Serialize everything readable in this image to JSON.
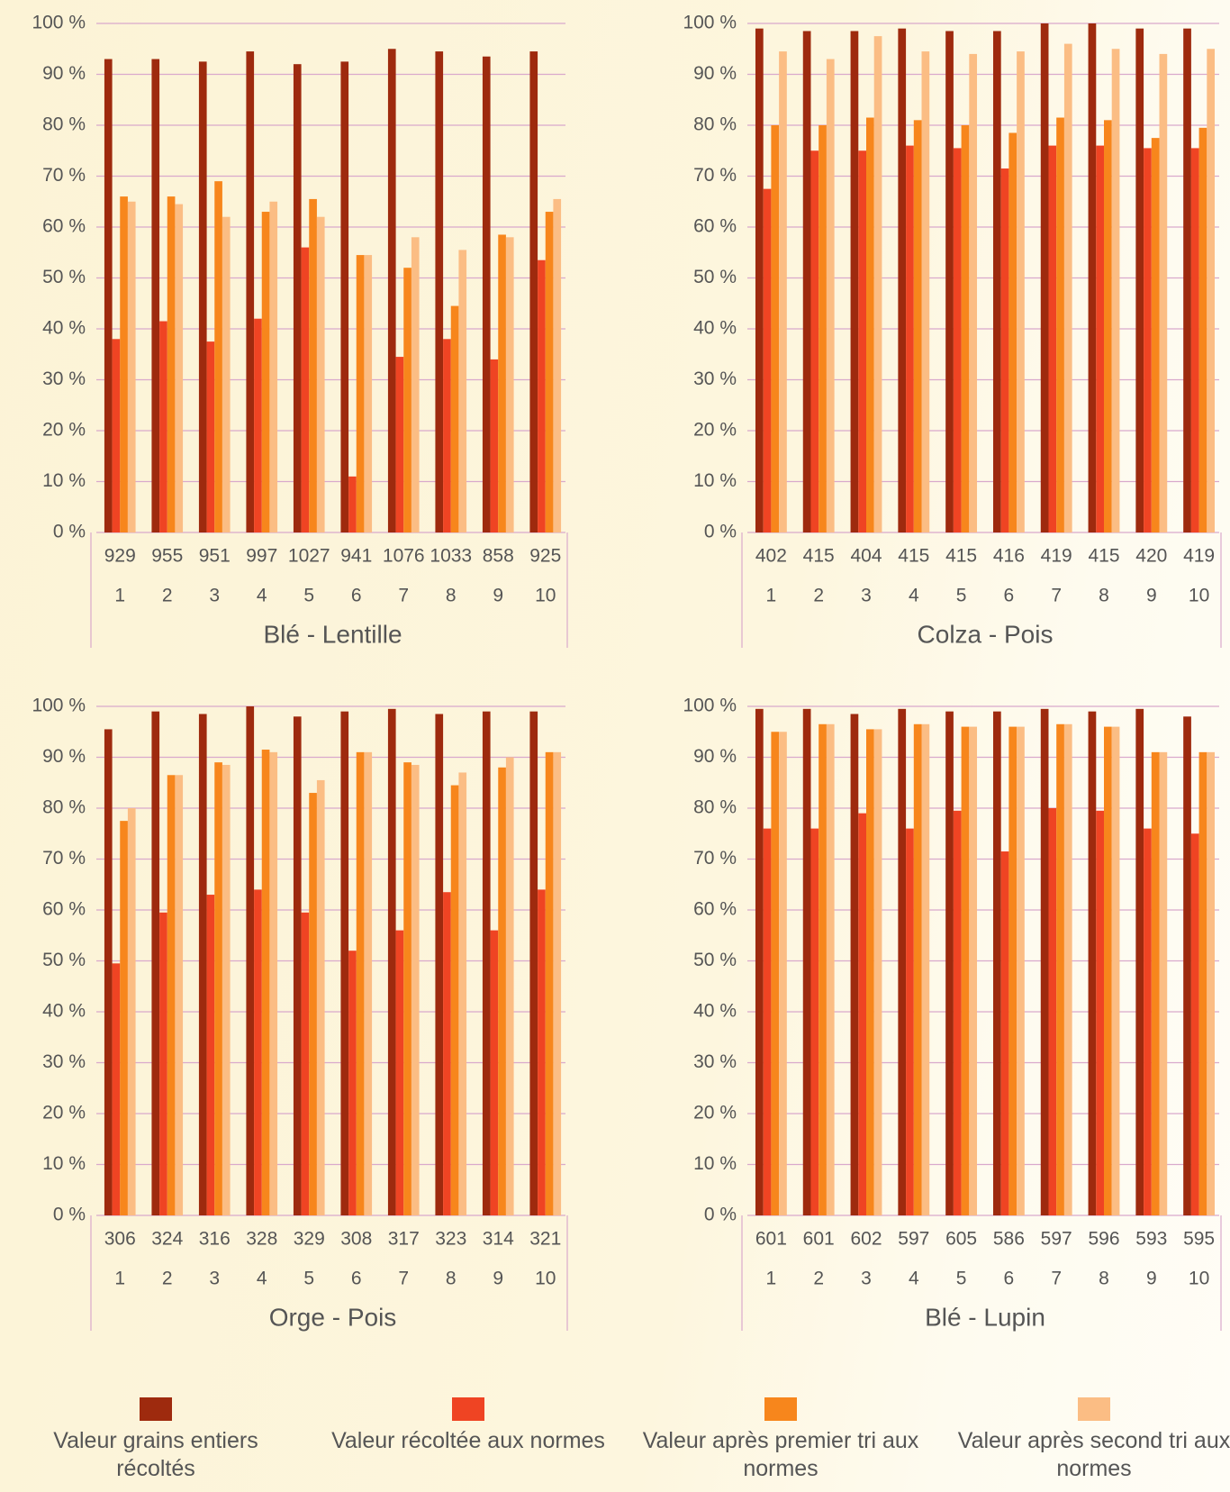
{
  "chart_data": [
    {
      "type": "bar",
      "x_label": "Blé - Lentille",
      "categories": [
        "1",
        "2",
        "3",
        "4",
        "5",
        "6",
        "7",
        "8",
        "9",
        "10"
      ],
      "counts": [
        "929",
        "955",
        "951",
        "997",
        "1027",
        "941",
        "1076",
        "1033",
        "858",
        "925"
      ],
      "ylim": [
        0,
        100
      ],
      "yticks": [
        {
          "value": 0,
          "label": "0 %"
        },
        {
          "value": 10,
          "label": "10 %"
        },
        {
          "value": 20,
          "label": "20 %"
        },
        {
          "value": 30,
          "label": "30 %"
        },
        {
          "value": 40,
          "label": "40 %"
        },
        {
          "value": 50,
          "label": "50 %"
        },
        {
          "value": 60,
          "label": "60 %"
        },
        {
          "value": 70,
          "label": "70 %"
        },
        {
          "value": 80,
          "label": "80 %"
        },
        {
          "value": 90,
          "label": "90 %"
        },
        {
          "value": 100,
          "label": "100 %"
        }
      ],
      "grid": true,
      "series": [
        {
          "name": "Valeur grains entiers récoltés",
          "color": "#9e2a0e",
          "values": [
            93,
            93,
            92.5,
            94.5,
            92,
            92.5,
            95,
            94.5,
            93.5,
            94.5
          ]
        },
        {
          "name": "Valeur récoltée aux normes",
          "color": "#ef4423",
          "values": [
            38,
            41.5,
            37.5,
            42,
            56,
            11,
            34.5,
            38,
            34,
            53.5
          ]
        },
        {
          "name": "Valeur après premier tri aux normes",
          "color": "#f7861c",
          "values": [
            66,
            66,
            69,
            63,
            65.5,
            54.5,
            52,
            44.5,
            58.5,
            63
          ]
        },
        {
          "name": "Valeur après second tri aux normes",
          "color": "#fbbd84",
          "values": [
            65,
            64.5,
            62,
            65,
            62,
            54.5,
            58,
            55.5,
            58,
            65.5
          ]
        }
      ]
    },
    {
      "type": "bar",
      "x_label": "Colza - Pois",
      "categories": [
        "1",
        "2",
        "3",
        "4",
        "5",
        "6",
        "7",
        "8",
        "9",
        "10"
      ],
      "counts": [
        "402",
        "415",
        "404",
        "415",
        "415",
        "416",
        "419",
        "415",
        "420",
        "419"
      ],
      "ylim": [
        0,
        100
      ],
      "yticks": [
        {
          "value": 0,
          "label": "0 %"
        },
        {
          "value": 10,
          "label": "10 %"
        },
        {
          "value": 20,
          "label": "20 %"
        },
        {
          "value": 30,
          "label": "30 %"
        },
        {
          "value": 40,
          "label": "40 %"
        },
        {
          "value": 50,
          "label": "50 %"
        },
        {
          "value": 60,
          "label": "60 %"
        },
        {
          "value": 70,
          "label": "70 %"
        },
        {
          "value": 80,
          "label": "80 %"
        },
        {
          "value": 90,
          "label": "90 %"
        },
        {
          "value": 100,
          "label": "100 %"
        }
      ],
      "grid": true,
      "series": [
        {
          "name": "Valeur grains entiers récoltés",
          "color": "#9e2a0e",
          "values": [
            99,
            98.5,
            98.5,
            99,
            98.5,
            98.5,
            100,
            100,
            99,
            99
          ]
        },
        {
          "name": "Valeur récoltée aux normes",
          "color": "#ef4423",
          "values": [
            67.5,
            75,
            75,
            76,
            75.5,
            71.5,
            76,
            76,
            75.5,
            75.5
          ]
        },
        {
          "name": "Valeur après premier tri aux normes",
          "color": "#f7861c",
          "values": [
            80,
            80,
            81.5,
            81,
            80,
            78.5,
            81.5,
            81,
            77.5,
            79.5
          ]
        },
        {
          "name": "Valeur après second tri aux normes",
          "color": "#fbbd84",
          "values": [
            94.5,
            93,
            97.5,
            94.5,
            94,
            94.5,
            96,
            95,
            94,
            95
          ]
        }
      ]
    },
    {
      "type": "bar",
      "x_label": "Orge - Pois",
      "categories": [
        "1",
        "2",
        "3",
        "4",
        "5",
        "6",
        "7",
        "8",
        "9",
        "10"
      ],
      "counts": [
        "306",
        "324",
        "316",
        "328",
        "329",
        "308",
        "317",
        "323",
        "314",
        "321"
      ],
      "ylim": [
        0,
        100
      ],
      "yticks": [
        {
          "value": 0,
          "label": "0 %"
        },
        {
          "value": 10,
          "label": "10 %"
        },
        {
          "value": 20,
          "label": "20 %"
        },
        {
          "value": 30,
          "label": "30 %"
        },
        {
          "value": 40,
          "label": "40 %"
        },
        {
          "value": 50,
          "label": "50 %"
        },
        {
          "value": 60,
          "label": "60 %"
        },
        {
          "value": 70,
          "label": "70 %"
        },
        {
          "value": 80,
          "label": "80 %"
        },
        {
          "value": 90,
          "label": "90 %"
        },
        {
          "value": 100,
          "label": "100 %"
        }
      ],
      "grid": true,
      "series": [
        {
          "name": "Valeur grains entiers récoltés",
          "color": "#9e2a0e",
          "values": [
            95.5,
            99,
            98.5,
            100,
            98,
            99,
            99.5,
            98.5,
            99,
            99
          ]
        },
        {
          "name": "Valeur récoltée aux normes",
          "color": "#ef4423",
          "values": [
            49.5,
            59.5,
            63,
            64,
            59.5,
            52,
            56,
            63.5,
            56,
            64
          ]
        },
        {
          "name": "Valeur après premier tri aux normes",
          "color": "#f7861c",
          "values": [
            77.5,
            86.5,
            89,
            91.5,
            83,
            91,
            89,
            84.5,
            88,
            91
          ]
        },
        {
          "name": "Valeur après second tri aux normes",
          "color": "#fbbd84",
          "values": [
            80,
            86.5,
            88.5,
            91,
            85.5,
            91,
            88.5,
            87,
            90,
            91
          ]
        }
      ]
    },
    {
      "type": "bar",
      "x_label": "Blé - Lupin",
      "categories": [
        "1",
        "2",
        "3",
        "4",
        "5",
        "6",
        "7",
        "8",
        "9",
        "10"
      ],
      "counts": [
        "601",
        "601",
        "602",
        "597",
        "605",
        "586",
        "597",
        "596",
        "593",
        "595"
      ],
      "ylim": [
        0,
        100
      ],
      "yticks": [
        {
          "value": 0,
          "label": "0 %"
        },
        {
          "value": 10,
          "label": "10 %"
        },
        {
          "value": 20,
          "label": "20 %"
        },
        {
          "value": 30,
          "label": "30 %"
        },
        {
          "value": 40,
          "label": "40 %"
        },
        {
          "value": 50,
          "label": "50 %"
        },
        {
          "value": 60,
          "label": "60 %"
        },
        {
          "value": 70,
          "label": "70 %"
        },
        {
          "value": 80,
          "label": "80 %"
        },
        {
          "value": 90,
          "label": "90 %"
        },
        {
          "value": 100,
          "label": "100 %"
        }
      ],
      "grid": true,
      "series": [
        {
          "name": "Valeur grains entiers récoltés",
          "color": "#9e2a0e",
          "values": [
            99.5,
            99.5,
            98.5,
            99.5,
            99,
            99,
            99.5,
            99,
            99.5,
            98
          ]
        },
        {
          "name": "Valeur récoltée aux normes",
          "color": "#ef4423",
          "values": [
            76,
            76,
            79,
            76,
            79.5,
            71.5,
            80,
            79.5,
            76,
            75
          ]
        },
        {
          "name": "Valeur après premier tri aux normes",
          "color": "#f7861c",
          "values": [
            95,
            96.5,
            95.5,
            96.5,
            96,
            96,
            96.5,
            96,
            91,
            91
          ]
        },
        {
          "name": "Valeur après second tri aux normes",
          "color": "#fbbd84",
          "values": [
            95,
            96.5,
            95.5,
            96.5,
            96,
            96,
            96.5,
            96,
            91,
            91
          ]
        }
      ]
    }
  ]
}
